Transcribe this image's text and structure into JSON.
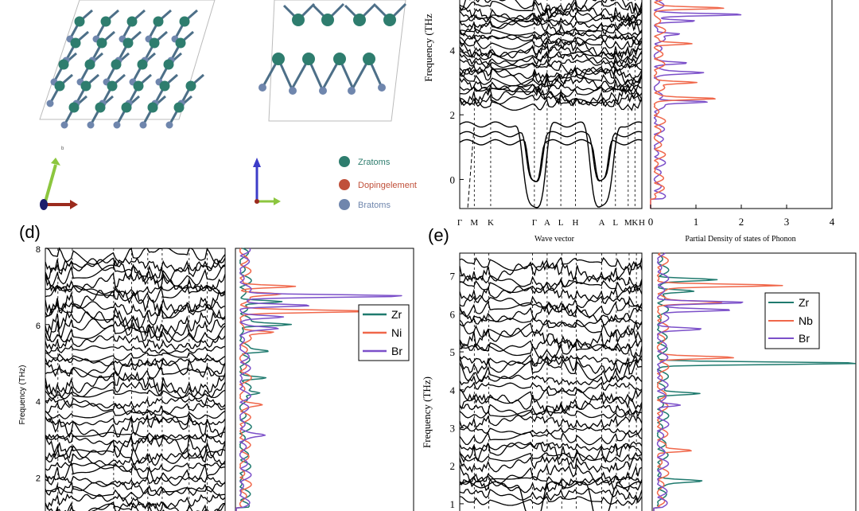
{
  "panel_labels": {
    "d": "(d)",
    "e": "(e)"
  },
  "structure_legend": {
    "items": [
      {
        "label": "Zratoms",
        "color": "#2e7d6e"
      },
      {
        "label": "Dopingelement",
        "color": "#c0503a"
      },
      {
        "label": "Bratoms",
        "color": "#6f86ad"
      }
    ],
    "axis_top_label": "b",
    "axis_colors": {
      "green": "#8cc63f",
      "red": "#9b2a1d",
      "blue": "#3c3cc8",
      "navy": "#1c1c6b"
    }
  },
  "colors": {
    "Zr": "#1f7a6e",
    "Ni": "#f0674a",
    "Nb": "#f0674a",
    "Br": "#7b4fc9",
    "band": "#000000"
  },
  "chart_data": [
    {
      "id": "top-right-bands",
      "type": "line",
      "ylabel": "Frequency (THz",
      "xlabel": "Wave vector",
      "ylim": [
        -0.9,
        5.6
      ],
      "yticks": [
        "0",
        "2",
        "4"
      ],
      "kpoints": [
        "Γ",
        "M",
        "K",
        "Γ",
        "A",
        "L",
        "H",
        "A",
        "L",
        "M",
        "K",
        "H"
      ],
      "kpos": [
        0.0,
        0.08,
        0.17,
        0.41,
        0.48,
        0.555,
        0.635,
        0.78,
        0.855,
        0.925,
        0.962,
        1.0
      ]
    },
    {
      "id": "top-right-pdos",
      "type": "line",
      "xlabel": "Partial Density of states of Phonon",
      "xlim": [
        0,
        4
      ],
      "xticks": [
        "0",
        "1",
        "2",
        "3",
        "4"
      ],
      "ylim": [
        -0.9,
        5.6
      ],
      "series": [
        {
          "name": "",
          "color": "#7b4fc9",
          "peaks": [
            [
              5.1,
              1.75
            ],
            [
              4.9,
              0.9
            ],
            [
              3.3,
              0.85
            ],
            [
              2.4,
              1.1
            ],
            [
              3.6,
              0.6
            ],
            [
              4.5,
              0.5
            ]
          ]
        },
        {
          "name": "",
          "color": "#f0674a",
          "peaks": [
            [
              5.3,
              1.4
            ],
            [
              4.2,
              0.8
            ],
            [
              2.5,
              1.2
            ],
            [
              3.0,
              0.9
            ]
          ]
        }
      ]
    },
    {
      "id": "panel-d-bands",
      "type": "line",
      "ylabel": "Frequency (THz)",
      "ylim": [
        0.9,
        8.0
      ],
      "yticks": [
        "2",
        "4",
        "6",
        "8"
      ]
    },
    {
      "id": "panel-d-pdos",
      "type": "line",
      "ylim": [
        0.9,
        8.0
      ],
      "series": [
        {
          "name": "Zr",
          "color": "#1f7a6e",
          "peaks": [
            [
              6.6,
              0.9
            ],
            [
              6.0,
              1.0
            ],
            [
              5.3,
              0.5
            ],
            [
              4.6,
              0.5
            ],
            [
              4.2,
              0.4
            ]
          ]
        },
        {
          "name": "Ni",
          "color": "#f0674a",
          "peaks": [
            [
              6.35,
              2.6
            ],
            [
              7.0,
              1.2
            ],
            [
              6.8,
              0.8
            ],
            [
              5.8,
              0.7
            ],
            [
              3.9,
              0.3
            ]
          ]
        },
        {
          "name": "Br",
          "color": "#7b4fc9",
          "peaks": [
            [
              6.75,
              3.6
            ],
            [
              6.5,
              1.5
            ],
            [
              6.2,
              0.8
            ],
            [
              5.9,
              0.6
            ],
            [
              3.1,
              0.3
            ]
          ]
        }
      ]
    },
    {
      "id": "panel-e-bands",
      "type": "line",
      "ylabel": "Frequency (THz)",
      "ylim": [
        0.6,
        7.6
      ],
      "yticks": [
        "1",
        "2",
        "3",
        "4",
        "5",
        "6",
        "7"
      ]
    },
    {
      "id": "panel-e-pdos",
      "type": "line",
      "ylim": [
        0.6,
        7.6
      ],
      "series": [
        {
          "name": "Zr",
          "color": "#1f7a6e",
          "peaks": [
            [
              4.7,
              4.5
            ],
            [
              6.9,
              1.2
            ],
            [
              3.9,
              0.9
            ],
            [
              1.6,
              0.8
            ],
            [
              6.6,
              0.8
            ]
          ]
        },
        {
          "name": "Nb",
          "color": "#f0674a",
          "peaks": [
            [
              6.75,
              2.6
            ],
            [
              4.85,
              1.6
            ],
            [
              6.3,
              1.3
            ],
            [
              2.4,
              0.7
            ]
          ]
        },
        {
          "name": "Br",
          "color": "#7b4fc9",
          "peaks": [
            [
              6.3,
              1.9
            ],
            [
              6.1,
              1.6
            ],
            [
              5.6,
              0.9
            ],
            [
              3.6,
              0.5
            ]
          ]
        }
      ]
    }
  ]
}
